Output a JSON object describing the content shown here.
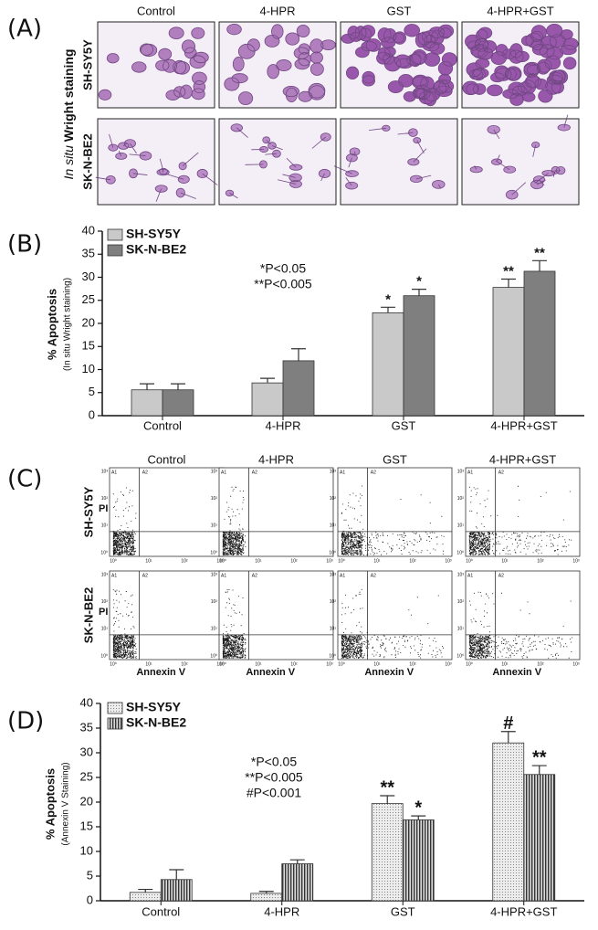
{
  "panel_labels": [
    "(A)",
    "(B)",
    "(C)",
    "(D)"
  ],
  "treatments": [
    "Control",
    "4-HPR",
    "GST",
    "4-HPR+GST"
  ],
  "cell_lines": [
    "SH-SY5Y",
    "SK-N-BE2"
  ],
  "panel_a": {
    "side_label_italic": "In situ",
    "side_label": "Wright staining"
  },
  "panel_c": {
    "y_axis_label": "PI",
    "x_axis_label": "Annexin V",
    "axis_ticks": [
      "10⁰",
      "10¹",
      "10²",
      "10³"
    ],
    "quadrants": [
      "A1",
      "A2"
    ]
  },
  "chart_data": [
    {
      "type": "bar",
      "ylabel": "% Apoptosis",
      "ylabel_sub": "(In situ Wright staining)",
      "categories": [
        "Control",
        "4-HPR",
        "GST",
        "4-HPR+GST"
      ],
      "series": [
        {
          "name": "SH-SY5Y",
          "color": "#c9c9c9",
          "pattern": "none",
          "values": [
            5.6,
            7.1,
            22.3,
            27.8
          ],
          "errors": [
            1.3,
            1.0,
            1.2,
            1.8
          ],
          "markers": [
            null,
            null,
            "*",
            "**"
          ]
        },
        {
          "name": "SK-N-BE2",
          "color": "#7f7f7f",
          "pattern": "none",
          "values": [
            5.6,
            11.9,
            26.0,
            31.3
          ],
          "errors": [
            1.3,
            2.6,
            1.4,
            2.3
          ],
          "markers": [
            null,
            null,
            "*",
            "**"
          ]
        }
      ],
      "annotations": [
        "*P<0.05",
        "**P<0.005"
      ],
      "ylim": [
        0,
        40
      ],
      "yticks": [
        0,
        5,
        10,
        15,
        20,
        25,
        30,
        35,
        40
      ],
      "grid": false
    },
    {
      "type": "bar",
      "ylabel": "% Apoptosis",
      "ylabel_sub": "(Annexin V Staining)",
      "categories": [
        "Control",
        "4-HPR",
        "GST",
        "4-HPR+GST"
      ],
      "series": [
        {
          "name": "SH-SY5Y",
          "color": "#e8e8e8",
          "pattern": "dots",
          "values": [
            1.7,
            1.5,
            19.7,
            32.0
          ],
          "errors": [
            0.6,
            0.4,
            1.6,
            2.3
          ],
          "markers": [
            null,
            null,
            "**",
            "#"
          ]
        },
        {
          "name": "SK-N-BE2",
          "color": "#777777",
          "pattern": "stripes",
          "values": [
            4.3,
            7.5,
            16.4,
            25.6
          ],
          "errors": [
            2.0,
            0.8,
            0.8,
            1.8
          ],
          "markers": [
            null,
            null,
            "*",
            "**"
          ]
        }
      ],
      "annotations": [
        "*P<0.05",
        "**P<0.005",
        "#P<0.001"
      ],
      "ylim": [
        0,
        40
      ],
      "yticks": [
        0,
        5,
        10,
        15,
        20,
        25,
        30,
        35,
        40
      ],
      "grid": false
    }
  ]
}
